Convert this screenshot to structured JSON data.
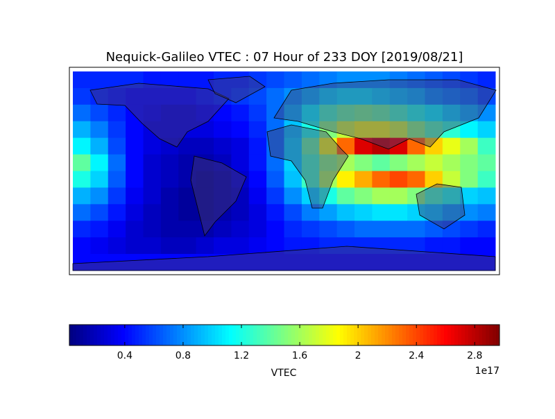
{
  "chart_data": {
    "type": "heatmap",
    "title": "Nequick-Galileo VTEC : 07 Hour of 233 DOY [2019/08/21]",
    "colorbar_label": "VTEC",
    "colorbar_scale_label": "1e17",
    "colormap": "jet",
    "zlim": [
      0.02,
      2.97
    ],
    "zticks": [
      0.4,
      0.8,
      1.2,
      1.6,
      2.0,
      2.4,
      2.8
    ],
    "values": [
      [
        0.5,
        0.5,
        0.5,
        0.5,
        0.45,
        0.45,
        0.45,
        0.45,
        0.5,
        0.5,
        0.55,
        0.6,
        0.65,
        0.7,
        0.75,
        0.8,
        0.8,
        0.8,
        0.75,
        0.7,
        0.65,
        0.6,
        0.55,
        0.5
      ],
      [
        0.55,
        0.5,
        0.45,
        0.4,
        0.4,
        0.4,
        0.4,
        0.45,
        0.5,
        0.55,
        0.6,
        0.7,
        0.8,
        0.9,
        1.0,
        1.05,
        1.05,
        1.0,
        0.95,
        0.9,
        0.8,
        0.75,
        0.7,
        0.6
      ],
      [
        0.7,
        0.6,
        0.5,
        0.4,
        0.35,
        0.3,
        0.3,
        0.35,
        0.4,
        0.45,
        0.55,
        0.7,
        0.9,
        1.1,
        1.3,
        1.4,
        1.45,
        1.4,
        1.3,
        1.2,
        1.1,
        1.0,
        0.9,
        0.8
      ],
      [
        0.9,
        0.75,
        0.55,
        0.4,
        0.3,
        0.3,
        0.3,
        0.3,
        0.35,
        0.4,
        0.5,
        0.7,
        0.95,
        1.2,
        1.5,
        1.7,
        1.8,
        1.8,
        1.7,
        1.5,
        1.35,
        1.25,
        1.1,
        1.0
      ],
      [
        1.1,
        0.9,
        0.6,
        0.4,
        0.3,
        0.25,
        0.2,
        0.2,
        0.25,
        0.3,
        0.45,
        0.7,
        1.0,
        1.4,
        1.8,
        2.3,
        2.7,
        2.8,
        2.7,
        2.3,
        2.0,
        1.8,
        1.6,
        1.3
      ],
      [
        1.4,
        1.1,
        0.7,
        0.4,
        0.25,
        0.2,
        0.15,
        0.15,
        0.2,
        0.3,
        0.45,
        0.7,
        1.0,
        1.3,
        1.5,
        1.6,
        1.5,
        1.4,
        1.5,
        1.6,
        1.7,
        1.6,
        1.5,
        1.4
      ],
      [
        1.2,
        1.0,
        0.65,
        0.4,
        0.25,
        0.2,
        0.15,
        0.1,
        0.15,
        0.25,
        0.4,
        0.65,
        0.95,
        1.3,
        1.6,
        1.9,
        2.1,
        2.3,
        2.4,
        2.3,
        2.0,
        1.7,
        1.5,
        1.3
      ],
      [
        0.9,
        0.8,
        0.55,
        0.35,
        0.25,
        0.15,
        0.1,
        0.1,
        0.15,
        0.2,
        0.35,
        0.55,
        0.8,
        1.0,
        1.2,
        1.4,
        1.5,
        1.6,
        1.6,
        1.5,
        1.3,
        1.2,
        1.0,
        0.95
      ],
      [
        0.7,
        0.6,
        0.45,
        0.3,
        0.2,
        0.15,
        0.1,
        0.1,
        0.15,
        0.2,
        0.3,
        0.45,
        0.6,
        0.75,
        0.85,
        0.95,
        1.0,
        1.05,
        1.05,
        1.0,
        0.95,
        0.85,
        0.8,
        0.75
      ],
      [
        0.5,
        0.45,
        0.35,
        0.25,
        0.2,
        0.15,
        0.15,
        0.15,
        0.2,
        0.25,
        0.3,
        0.4,
        0.5,
        0.55,
        0.6,
        0.65,
        0.7,
        0.7,
        0.7,
        0.7,
        0.65,
        0.6,
        0.55,
        0.5
      ],
      [
        0.4,
        0.35,
        0.3,
        0.25,
        0.25,
        0.2,
        0.2,
        0.25,
        0.3,
        0.3,
        0.35,
        0.4,
        0.45,
        0.45,
        0.5,
        0.5,
        0.5,
        0.5,
        0.5,
        0.5,
        0.45,
        0.45,
        0.4,
        0.4
      ],
      [
        0.4,
        0.4,
        0.4,
        0.4,
        0.4,
        0.4,
        0.4,
        0.4,
        0.4,
        0.4,
        0.4,
        0.4,
        0.4,
        0.4,
        0.4,
        0.4,
        0.4,
        0.4,
        0.4,
        0.4,
        0.4,
        0.4,
        0.4,
        0.4
      ]
    ]
  }
}
